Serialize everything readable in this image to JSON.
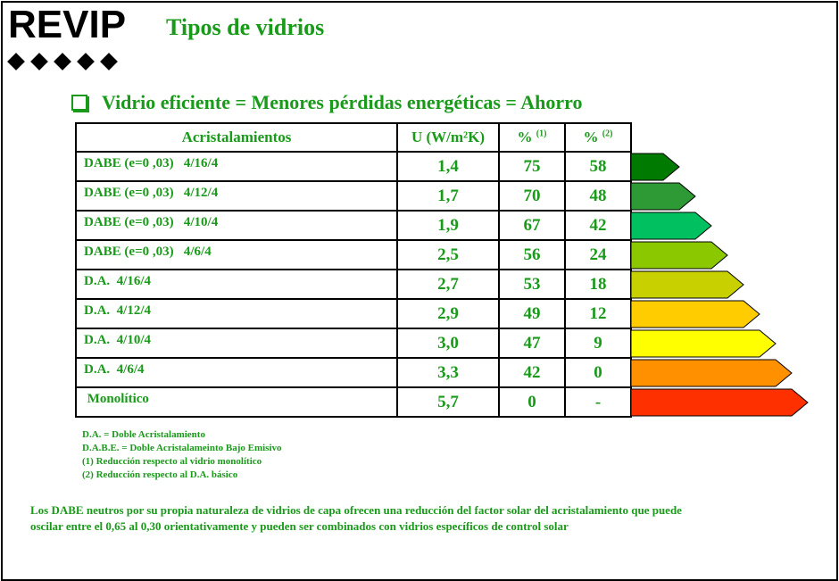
{
  "logo": {
    "text": "REVIP"
  },
  "title": "Tipos de vidrios",
  "subtitle": "Vidrio eficiente = Menores pérdidas energéticas = Ahorro",
  "table": {
    "headers": {
      "name": "Acristalamientos",
      "u": "U (W/m²K)",
      "p1": "%",
      "p1_sup": "(1)",
      "p2": "%",
      "p2_sup": "(2)"
    },
    "rows": [
      {
        "name": "DABE (e=0 ,03)   4/16/4",
        "u": "1,4",
        "p1": "75",
        "p2": "58"
      },
      {
        "name": "DABE (e=0 ,03)   4/12/4",
        "u": "1,7",
        "p1": "70",
        "p2": "48"
      },
      {
        "name": "DABE (e=0 ,03)   4/10/4",
        "u": "1,9",
        "p1": "67",
        "p2": "42"
      },
      {
        "name": "DABE (e=0 ,03)   4/6/4",
        "u": "2,5",
        "p1": "56",
        "p2": "24"
      },
      {
        "name": "D.A.  4/16/4",
        "u": "2,7",
        "p1": "53",
        "p2": "18"
      },
      {
        "name": "D.A.  4/12/4",
        "u": "2,9",
        "p1": "49",
        "p2": "12"
      },
      {
        "name": "D.A.  4/10/4",
        "u": "3,0",
        "p1": "47",
        "p2": "9"
      },
      {
        "name": "D.A.  4/6/4",
        "u": "3,3",
        "p1": "42",
        "p2": "0"
      },
      {
        "name": " Monolítico",
        "u": "5,7",
        "p1": "0",
        "p2": "-"
      }
    ]
  },
  "energy_arrows": {
    "colors": [
      "#007a00",
      "#2e9a36",
      "#00c060",
      "#8cc800",
      "#c8d000",
      "#ffcc00",
      "#ffff00",
      "#ff9000",
      "#ff3000"
    ]
  },
  "notes": [
    "D.A. = Doble Acristalamiento",
    "D.A.B.E. = Doble Acristalameinto Bajo Emisivo",
    "(1) Reducción respecto al vidrio monolítico",
    "(2) Reducción respecto al D.A.  básico"
  ],
  "footer": {
    "line1": "Los DABE neutros por su propia naturaleza de vidrios de capa ofrecen una reducción del factor solar del acristalamiento que puede",
    "line2": "oscilar entre el 0,65 al 0,30 orientativamente y pueden ser combinados con vidrios específicos de control solar"
  }
}
